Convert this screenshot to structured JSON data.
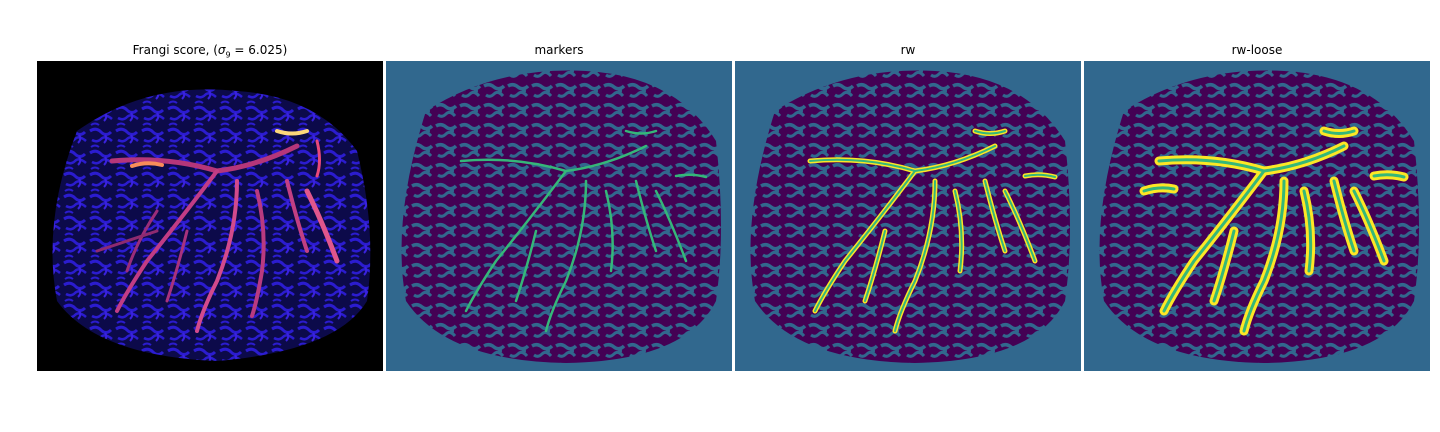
{
  "panels": [
    {
      "title_prefix": "Frangi score, (",
      "title_sigma": "σ",
      "title_sub": "9",
      "title_suffix": " = 6.025)",
      "colormap": "magma"
    },
    {
      "title": "markers",
      "colormap": "viridis"
    },
    {
      "title": "rw",
      "colormap": "viridis"
    },
    {
      "title": "rw-loose",
      "colormap": "viridis"
    }
  ],
  "colors": {
    "frangi_background": "#000000",
    "frangi_tissue": "#0c0a4a",
    "frangi_cells": "#2b1ccf",
    "frangi_vessels": "#d0358e",
    "frangi_peak": "#fcd77a",
    "label_background": "#31688e",
    "label_dark": "#440154",
    "label_mid": "#35b779",
    "label_bright": "#fde725"
  }
}
